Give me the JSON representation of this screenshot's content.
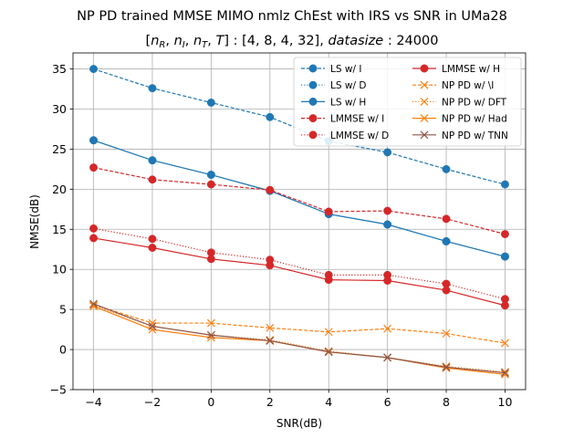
{
  "chart_data": {
    "type": "line",
    "title": "NP PD trained MMSE MIMO nmlz ChEst with IRS vs SNR in UMa28",
    "subtitle": "[n_R, n_I, n_T, T] : [4, 8, 4, 32], datasize : 24000",
    "xlabel": "SNR(dB)",
    "ylabel": "NMSE(dB)",
    "xlim": [
      -4.7,
      10.7
    ],
    "ylim": [
      -5,
      37
    ],
    "xticks": [
      -4,
      -2,
      0,
      2,
      4,
      6,
      8,
      10
    ],
    "xtick_labels": [
      "−4",
      "−2",
      "0",
      "2",
      "4",
      "6",
      "8",
      "10"
    ],
    "yticks": [
      -5,
      0,
      5,
      10,
      15,
      20,
      25,
      30,
      35
    ],
    "ytick_labels": [
      "−5",
      "0",
      "5",
      "10",
      "15",
      "20",
      "25",
      "30",
      "35"
    ],
    "grid": true,
    "legend_position": "top-right",
    "legend_columns": 2,
    "x": [
      -4,
      -2,
      0,
      2,
      4,
      6,
      8,
      10
    ],
    "series": [
      {
        "name": "LS w/ I",
        "color": "#1f77b4",
        "dash": "dashed",
        "marker": "circle",
        "values": [
          35.0,
          32.6,
          30.8,
          29.0,
          26.0,
          24.6,
          22.5,
          20.6
        ]
      },
      {
        "name": "LS w/ D",
        "color": "#1f77b4",
        "dash": "dotted",
        "marker": "circle",
        "values": [
          26.1,
          23.6,
          21.8,
          19.8,
          16.9,
          15.6,
          13.5,
          11.6
        ]
      },
      {
        "name": "LS w/ H",
        "color": "#1f77b4",
        "dash": "solid",
        "marker": "circle",
        "values": [
          26.1,
          23.6,
          21.8,
          19.8,
          16.9,
          15.6,
          13.5,
          11.6
        ]
      },
      {
        "name": "LMMSE w/ I",
        "color": "#d62728",
        "dash": "dashed",
        "marker": "circle",
        "values": [
          22.7,
          21.2,
          20.6,
          19.9,
          17.2,
          17.3,
          16.3,
          14.4
        ]
      },
      {
        "name": "LMMSE w/ D",
        "color": "#d62728",
        "dash": "dotted",
        "marker": "circle",
        "values": [
          15.1,
          13.8,
          12.1,
          11.2,
          9.3,
          9.3,
          8.2,
          6.3
        ]
      },
      {
        "name": "LMMSE w/ H",
        "color": "#d62728",
        "dash": "solid",
        "marker": "circle",
        "values": [
          13.9,
          12.7,
          11.3,
          10.5,
          8.7,
          8.6,
          7.4,
          5.5
        ]
      },
      {
        "name": "NP PD w/ \\I",
        "color": "#ff7f0e",
        "dash": "dashed",
        "marker": "x",
        "values": [
          5.6,
          3.3,
          3.3,
          2.7,
          2.2,
          2.6,
          2.0,
          0.8
        ]
      },
      {
        "name": "NP PD w/ DFT",
        "color": "#ff7f0e",
        "dash": "dotted",
        "marker": "x",
        "values": [
          5.5,
          2.9,
          1.8,
          1.2,
          -0.2,
          -1.0,
          -2.1,
          -2.8
        ]
      },
      {
        "name": "NP PD w/ Had",
        "color": "#ff7f0e",
        "dash": "solid",
        "marker": "x",
        "values": [
          5.4,
          2.5,
          1.5,
          1.1,
          -0.3,
          -1.0,
          -2.3,
          -3.1
        ]
      },
      {
        "name": "NP PD w/ TNN",
        "color": "#8c564b",
        "dash": "solid",
        "marker": "x",
        "values": [
          5.7,
          2.9,
          1.8,
          1.1,
          -0.3,
          -1.0,
          -2.2,
          -2.9
        ]
      }
    ]
  }
}
